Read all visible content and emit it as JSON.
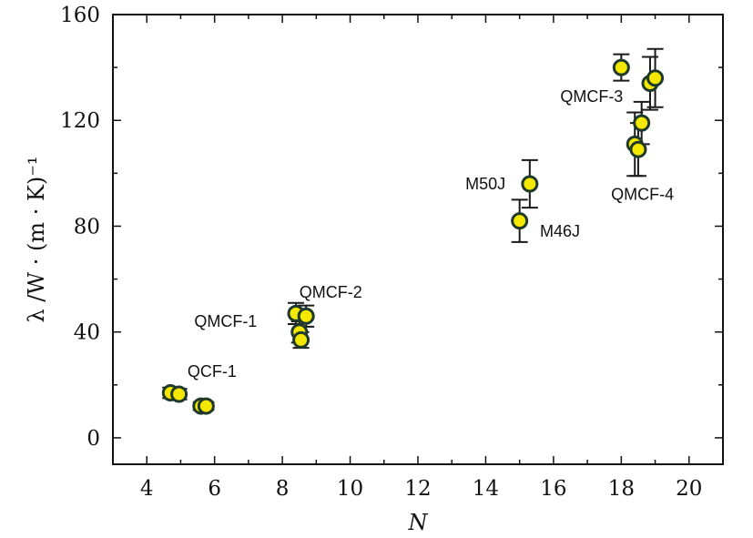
{
  "chart_data": {
    "type": "scatter",
    "title": "",
    "xlabel": "N",
    "ylabel": "λ /W · (m · K)⁻¹",
    "xlim": [
      3,
      21
    ],
    "ylim": [
      -10,
      160
    ],
    "xticks": [
      4,
      6,
      8,
      10,
      12,
      14,
      16,
      18,
      20
    ],
    "yticks": [
      0,
      40,
      80,
      120,
      160
    ],
    "grid": false,
    "legend": "none",
    "marker_color": "#f5e800",
    "marker_edge": "#1f3a2a",
    "points": [
      {
        "x": 4.7,
        "y": 17,
        "err": 2
      },
      {
        "x": 4.95,
        "y": 16.5,
        "err": 2
      },
      {
        "x": 5.6,
        "y": 12,
        "err": 1.5
      },
      {
        "x": 5.75,
        "y": 12,
        "err": 1.5
      },
      {
        "x": 8.4,
        "y": 47,
        "err": 4
      },
      {
        "x": 8.5,
        "y": 40,
        "err": 4
      },
      {
        "x": 8.55,
        "y": 37,
        "err": 3
      },
      {
        "x": 8.7,
        "y": 46,
        "err": 4
      },
      {
        "x": 15.0,
        "y": 82,
        "err": 8
      },
      {
        "x": 15.3,
        "y": 96,
        "err": 9
      },
      {
        "x": 18.0,
        "y": 140,
        "err": 5
      },
      {
        "x": 18.4,
        "y": 111,
        "err": 12
      },
      {
        "x": 18.5,
        "y": 109,
        "err": 10
      },
      {
        "x": 18.6,
        "y": 119,
        "err": 8
      },
      {
        "x": 18.85,
        "y": 134,
        "err": 10
      },
      {
        "x": 19.0,
        "y": 136,
        "err": 11
      }
    ],
    "annotations": [
      {
        "text": "QCF-1",
        "x": 5.2,
        "y": 23
      },
      {
        "text": "QMCF-1",
        "x": 5.4,
        "y": 42
      },
      {
        "text": "QMCF-2",
        "x": 8.5,
        "y": 53
      },
      {
        "text": "M50J",
        "x": 13.4,
        "y": 94
      },
      {
        "text": "M46J",
        "x": 15.6,
        "y": 76
      },
      {
        "text": "QMCF-3",
        "x": 16.2,
        "y": 127
      },
      {
        "text": "QMCF-4",
        "x": 17.7,
        "y": 90
      }
    ]
  }
}
